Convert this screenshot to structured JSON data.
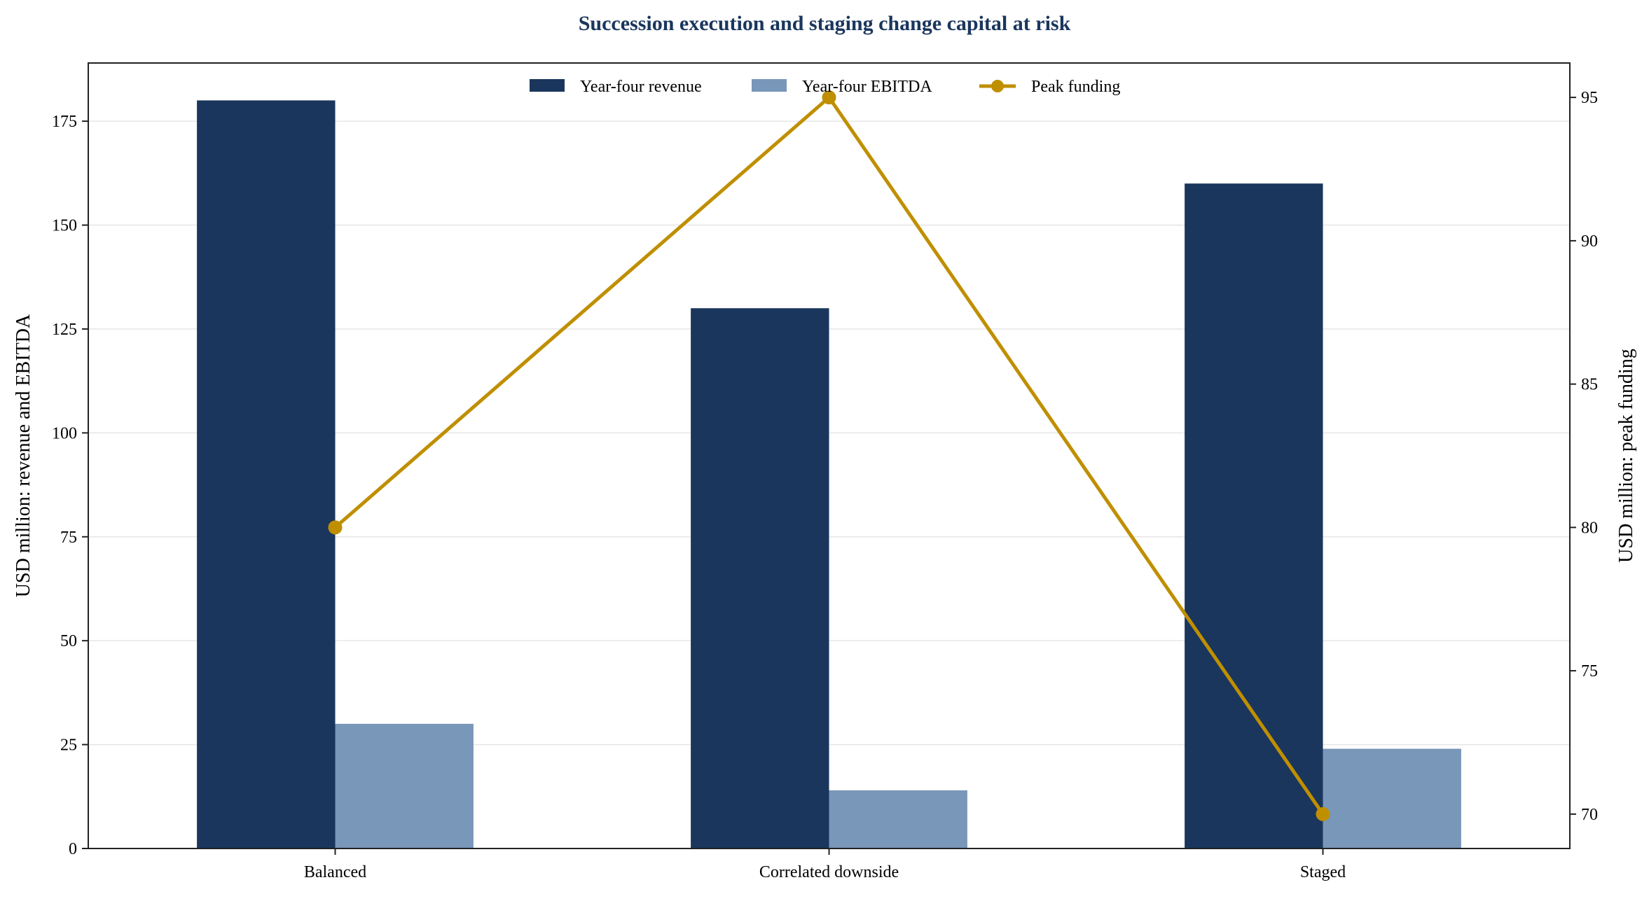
{
  "chart_data": {
    "type": "bar",
    "title": "Succession execution and staging change capital at risk",
    "categories": [
      "Balanced",
      "Correlated downside",
      "Staged"
    ],
    "series": [
      {
        "name": "Year-four revenue",
        "type": "bar",
        "axis": "left",
        "values": [
          180,
          130,
          160
        ],
        "color": "#1a365d"
      },
      {
        "name": "Year-four EBITDA",
        "type": "bar",
        "axis": "left",
        "values": [
          30,
          14,
          24
        ],
        "color": "#7897b9"
      },
      {
        "name": "Peak funding",
        "type": "line",
        "axis": "right",
        "values": [
          80,
          95,
          70
        ],
        "color": "#bf8f00"
      }
    ],
    "ylabel": "USD million: revenue and EBITDA",
    "y2label": "USD million: peak funding",
    "ylim": [
      0,
      189
    ],
    "y2lim": [
      68.8,
      96.2
    ],
    "yticks": [
      0,
      25,
      50,
      75,
      100,
      125,
      150,
      175
    ],
    "y2ticks": [
      70,
      75,
      80,
      85,
      90,
      95
    ],
    "grid": true,
    "legend_position": "top-center",
    "title_color": "#1a365d"
  }
}
